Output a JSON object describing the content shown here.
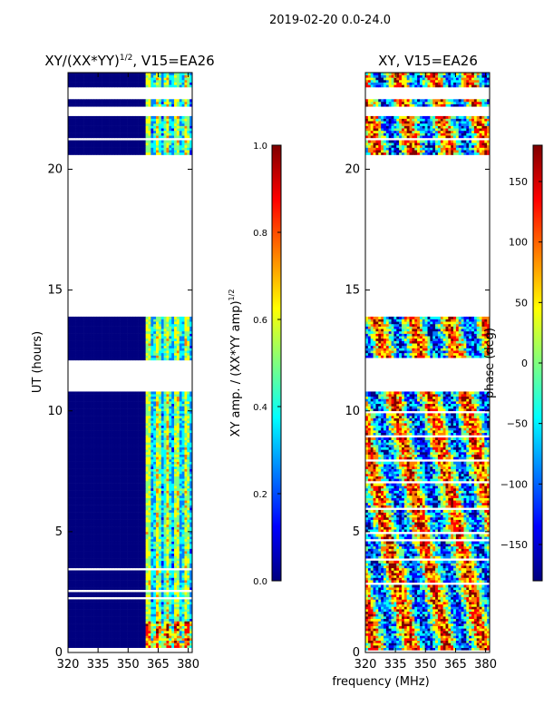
{
  "figure": {
    "suptitle": "2019-02-20 0.0-24.0",
    "shared_xlabel": "frequency (MHz)"
  },
  "colors": {
    "bg": "#00007f",
    "jet": [
      "#00007f",
      "#0000ff",
      "#007fff",
      "#00ffff",
      "#7fff7f",
      "#ffff00",
      "#ff7f00",
      "#ff0000",
      "#7f0000"
    ]
  },
  "chart_data": [
    {
      "type": "heatmap",
      "title": "XY/(XX*YY)",
      "title_exponent": "1/2",
      "title_suffix": ", V15=EA26",
      "xlabel": "",
      "ylabel": "UT (hours)",
      "xlim": [
        320,
        382
      ],
      "ylim": [
        0,
        24
      ],
      "xticks": [
        320,
        335,
        350,
        365,
        380
      ],
      "yticks": [
        0,
        5,
        10,
        15,
        20
      ],
      "flagged_ut_ranges": [
        [
          10.8,
          12.1
        ],
        [
          13.95,
          20.6
        ],
        [
          21.25,
          21.3
        ],
        [
          22.2,
          22.55
        ],
        [
          22.9,
          23.35
        ]
      ],
      "active_freq_range": [
        359,
        380
      ],
      "colorbar": {
        "label": "XY amp. / (XX*YY amp)",
        "label_exponent": "1/2",
        "range": [
          0.0,
          1.0
        ],
        "ticks": [
          0.0,
          0.2,
          0.4,
          0.6,
          0.8,
          1.0
        ],
        "tick_labels": [
          "0.0",
          "0.2",
          "0.4",
          "0.6",
          "0.8",
          "1.0"
        ]
      }
    },
    {
      "type": "heatmap",
      "title": "XY, V15=EA26",
      "xlabel": "frequency (MHz)",
      "ylabel": "",
      "xlim": [
        320,
        382
      ],
      "ylim": [
        0,
        24
      ],
      "xticks": [
        320,
        335,
        350,
        365,
        380
      ],
      "yticks": [
        0,
        5,
        10,
        15,
        20
      ],
      "flagged_ut_ranges": [
        [
          10.8,
          12.1
        ],
        [
          13.95,
          20.6
        ],
        [
          21.25,
          21.3
        ],
        [
          22.2,
          22.55
        ],
        [
          22.9,
          23.35
        ]
      ],
      "colorbar": {
        "label": "phase (deg)",
        "range": [
          -180,
          180
        ],
        "ticks": [
          -150,
          -100,
          -50,
          0,
          50,
          100,
          150
        ],
        "tick_labels": [
          "−150",
          "−100",
          "−50",
          "0",
          "50",
          "100",
          "150"
        ]
      }
    }
  ]
}
